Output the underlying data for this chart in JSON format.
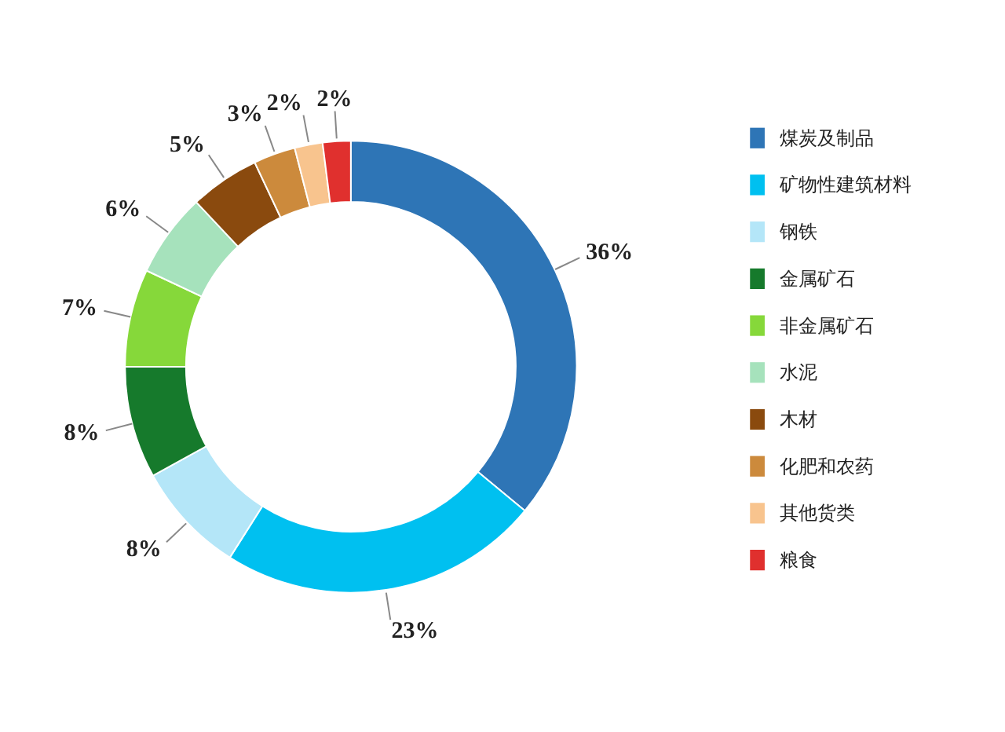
{
  "chart_data": {
    "type": "donut",
    "categories": [
      "煤炭及制品",
      "矿物性建筑材料",
      "钢铁",
      "金属矿石",
      "非金属矿石",
      "水泥",
      "木材",
      "化肥和农药",
      "其他货类",
      "粮食"
    ],
    "values": [
      36,
      23,
      8,
      8,
      7,
      6,
      5,
      3,
      2,
      2
    ],
    "value_labels": [
      "36%",
      "23%",
      "8%",
      "8%",
      "7%",
      "6%",
      "5%",
      "3%",
      "2%",
      "2%"
    ],
    "colors": [
      "#2e75b6",
      "#00c0f0",
      "#b4e6f8",
      "#167a2c",
      "#86d83a",
      "#a6e2bc",
      "#8a4a0e",
      "#cc8a3c",
      "#f8c48e",
      "#e0302e"
    ],
    "legend": "right"
  }
}
